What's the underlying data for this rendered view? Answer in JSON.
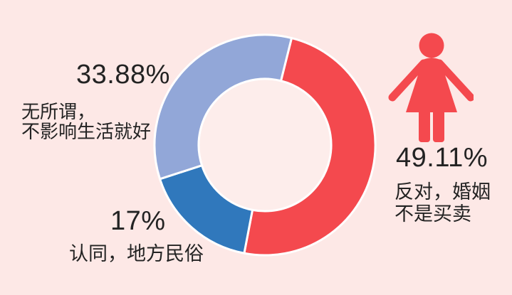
{
  "canvas": {
    "background_color": "#fde8e6",
    "text_color": "#232323"
  },
  "labels": {
    "indifferent": {
      "pct": "33.88%",
      "line1": "无所谓，",
      "line2": "不影响生活就好"
    },
    "agree": {
      "pct": "17%",
      "line1": "认同，地方民俗"
    },
    "oppose": {
      "pct": "49.11%",
      "line1": "反对，婚姻",
      "line2": "不是买卖"
    }
  },
  "icon": {
    "name": "female-figure",
    "color": "#f4494e"
  },
  "chart_data": {
    "type": "pie",
    "subtype": "donut",
    "slices": [
      {
        "label": "反对，婚姻不是买卖",
        "value": 49.11,
        "display": "49.11%",
        "color": "#f4494e"
      },
      {
        "label": "认同，地方民俗",
        "value": 17,
        "display": "17%",
        "color": "#3078bc"
      },
      {
        "label": "无所谓，不影响生活就好",
        "value": 33.88,
        "display": "33.88%",
        "color": "#92a7d8"
      }
    ],
    "start_angle_deg": 14,
    "direction": "clockwise",
    "inner_radius_ratio": 0.6,
    "slice_gap_color": "#ffffff",
    "hole_color": "#fdedeb",
    "legend_position": "labels-around-chart"
  }
}
